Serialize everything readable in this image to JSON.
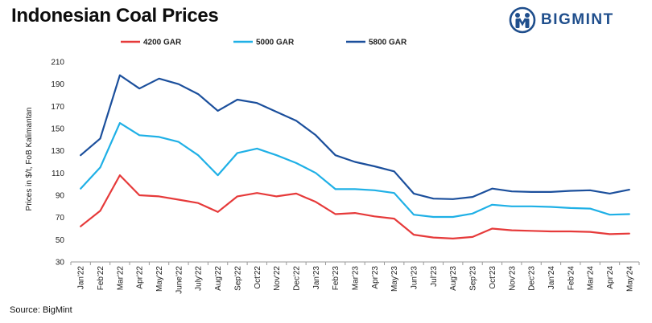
{
  "title": "Indonesian Coal Prices",
  "brand": {
    "name": "BIGMINT",
    "logo_icon": "bigmint-logo-icon"
  },
  "source": "Source: BigMint",
  "chart_data": {
    "type": "line",
    "xlabel": "",
    "ylabel": "Prices in $/t, FoB Kalimantan",
    "ylim": [
      30,
      210
    ],
    "yticks": [
      30,
      50,
      70,
      90,
      110,
      130,
      150,
      170,
      190,
      210
    ],
    "grid": false,
    "legend_position": "top",
    "categories": [
      "Jan'22",
      "Feb'22",
      "Mar'22",
      "Apr'22",
      "May'22",
      "June'22",
      "July'22",
      "Aug'22",
      "Sep'22",
      "Oct'22",
      "Nov'22",
      "Dec'22",
      "Jan'23",
      "Feb'23",
      "Mar'23",
      "Apr'23",
      "May'23",
      "Jun'23",
      "Jul'23",
      "Aug'23",
      "Sep'23",
      "Oct'23",
      "Nov'23",
      "Dec'23",
      "Jan'24",
      "Feb'24",
      "Mar'24",
      "Apr'24",
      "May'24"
    ],
    "series": [
      {
        "name": "4200 GAR",
        "color": "#e63a3a",
        "values": [
          62,
          76,
          108,
          90,
          89,
          86,
          83,
          75,
          89,
          92,
          89,
          91.5,
          84,
          73,
          74,
          71,
          69,
          54.5,
          52,
          51,
          52.5,
          60,
          58.5,
          58,
          57.5,
          57.5,
          57,
          55,
          55.5
        ]
      },
      {
        "name": "5000 GAR",
        "color": "#1fb0e6",
        "values": [
          96,
          115,
          155,
          144,
          142.5,
          138,
          126,
          108,
          128,
          132,
          126,
          119,
          110,
          95.5,
          95.5,
          94.5,
          92,
          72.5,
          70.5,
          70.5,
          73.5,
          81.5,
          80,
          80,
          79.5,
          78.5,
          78,
          72.5,
          73
        ]
      },
      {
        "name": "5800 GAR",
        "color": "#1b4f9c",
        "values": [
          126,
          141,
          198,
          186,
          195,
          190,
          181,
          166,
          176,
          173,
          165,
          157,
          144,
          126,
          120,
          116,
          111.5,
          91.5,
          87,
          86.5,
          88.5,
          96,
          93.5,
          93,
          93,
          94,
          94.5,
          91.5,
          95
        ]
      }
    ]
  }
}
